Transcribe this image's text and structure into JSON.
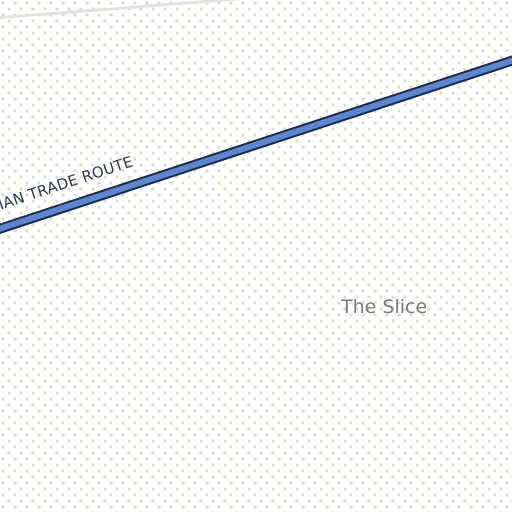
{
  "map": {
    "background_color": "#ffffff",
    "texture_dot_color": "#dcdcc8",
    "minor_road_color": "#e2e2e2",
    "route": {
      "label": "MIAN TRADE ROUTE",
      "fill_color": "#5a86d4",
      "casing_color": "#1d2a44"
    },
    "places": [
      {
        "label": "The Slice",
        "color": "#7a7a7a"
      }
    ]
  }
}
